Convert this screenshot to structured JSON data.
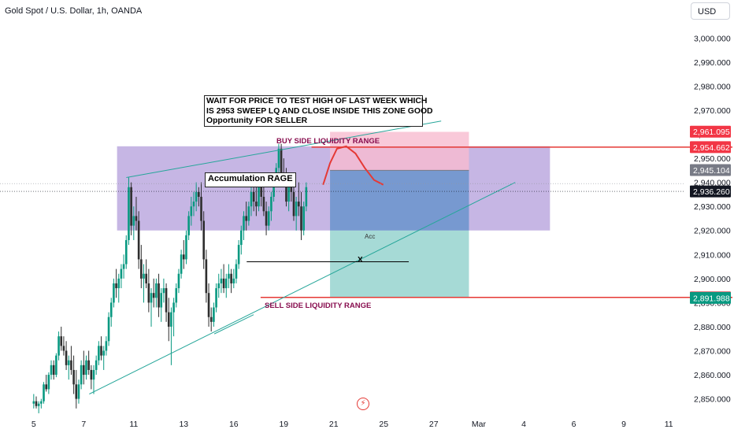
{
  "header": {
    "title": "Gold Spot / U.S. Dollar, 1h, OANDA",
    "currency": "USD"
  },
  "annotations": {
    "note_lines": [
      "WAIT FOR PRICE TO TEST HIGH OF LAST WEEK WHICH",
      "IS 2953 SWEEP LQ AND CLOSE INSIDE THIS ZONE GOOD",
      "Opportunity FOR SELLER"
    ],
    "accumulation": "Accumulation RAGE",
    "buy_side": "BUY SIDE LIQUIDITY RANGE",
    "sell_side": "SELL SIDE LIQUIDITY RANGE",
    "acc": "Acc",
    "x_mark": "X",
    "flash_icon": "lightning-icon"
  },
  "colors": {
    "bull": "#089981",
    "bear": "#2e2e2e",
    "accumulation_zone": "#b39ddb",
    "stop_zone": "#f8bbd0",
    "target_zone": "#80cbc4",
    "level_line": "#e53935",
    "trendline": "#26a69a"
  },
  "chart_data": {
    "type": "candlestick",
    "ylim": [
      2843,
      3006
    ],
    "y_ticks": [
      "3,000.000",
      "2,990.000",
      "2,980.000",
      "2,970.000",
      "2,960.000",
      "2,950.000",
      "2,940.000",
      "2,930.000",
      "2,920.000",
      "2,910.000",
      "2,900.000",
      "2,890.000",
      "2,880.000",
      "2,870.000",
      "2,860.000",
      "2,850.000"
    ],
    "y_tick_values": [
      3000,
      2990,
      2980,
      2970,
      2960,
      2950,
      2940,
      2930,
      2920,
      2910,
      2900,
      2890,
      2880,
      2870,
      2860,
      2850
    ],
    "x_ticks": [
      "5",
      "7",
      "11",
      "13",
      "16",
      "19",
      "21",
      "25",
      "27",
      "Mar",
      "4",
      "6",
      "9",
      "11"
    ],
    "x_tick_index": [
      0,
      20,
      40,
      60,
      80,
      100,
      120,
      140,
      160,
      178,
      196,
      216,
      236,
      254
    ],
    "index_range": [
      -3,
      278
    ],
    "price_labels": [
      {
        "text": "2,961.095",
        "value": 2961.095,
        "bg": "#f23645",
        "fg": "#ffffff"
      },
      {
        "text": "2,954.662",
        "value": 2954.662,
        "bg": "#f23645",
        "fg": "#ffffff"
      },
      {
        "text": "2,945.104",
        "value": 2945.104,
        "bg": "#787b86",
        "fg": "#ffffff"
      },
      {
        "text": "2,936.260",
        "value": 2936.26,
        "bg": "#131722",
        "fg": "#ffffff"
      },
      {
        "text": "2,892.162",
        "value": 2892.162,
        "bg": "#f23645",
        "fg": "#ffffff"
      },
      {
        "text": "2,891.988",
        "value": 2891.988,
        "bg": "#089981",
        "fg": "#ffffff"
      }
    ],
    "accumulation_zone": {
      "x": [
        36,
        223
      ],
      "y": [
        2920,
        2955
      ]
    },
    "stop_zone": {
      "x": [
        128,
        188
      ],
      "y": [
        2945,
        2961
      ]
    },
    "blue_zone": {
      "x": [
        128,
        188
      ],
      "y": [
        2920,
        2945
      ]
    },
    "target_zone": {
      "x": [
        128,
        188
      ],
      "y": [
        2892,
        2920
      ]
    },
    "levels": [
      2954.662,
      2892.162
    ],
    "trendlines": [
      {
        "x": [
          40,
          176
        ],
        "y": [
          2942,
          2965.5
        ]
      },
      {
        "x": [
          24,
          208
        ],
        "y": [
          2852,
          2940
        ]
      },
      {
        "x": [
          78,
          95
        ],
        "y": [
          2877,
          2885
        ]
      }
    ],
    "x_line": {
      "x": [
        92,
        162
      ],
      "y": 2907
    },
    "projection": [
      [
        125,
        2939
      ],
      [
        128,
        2948
      ],
      [
        131,
        2954
      ],
      [
        135,
        2955
      ],
      [
        139,
        2952
      ],
      [
        143,
        2946
      ],
      [
        147,
        2941
      ],
      [
        151,
        2939
      ]
    ],
    "candles": [
      [
        2848,
        2852,
        2846,
        2849
      ],
      [
        2849,
        2851,
        2846,
        2847
      ],
      [
        2847,
        2849,
        2844,
        2848
      ],
      [
        2848,
        2850,
        2846,
        2849
      ],
      [
        2849,
        2857,
        2848,
        2856
      ],
      [
        2856,
        2860,
        2853,
        2854
      ],
      [
        2854,
        2861,
        2852,
        2860
      ],
      [
        2860,
        2866,
        2858,
        2864
      ],
      [
        2864,
        2866,
        2858,
        2860
      ],
      [
        2860,
        2869,
        2859,
        2868
      ],
      [
        2868,
        2878,
        2866,
        2876
      ],
      [
        2876,
        2880,
        2870,
        2872
      ],
      [
        2872,
        2876,
        2868,
        2870
      ],
      [
        2870,
        2874,
        2862,
        2864
      ],
      [
        2864,
        2868,
        2858,
        2866
      ],
      [
        2866,
        2872,
        2860,
        2862
      ],
      [
        2862,
        2868,
        2852,
        2856
      ],
      [
        2856,
        2862,
        2846,
        2850
      ],
      [
        2850,
        2858,
        2848,
        2856
      ],
      [
        2856,
        2866,
        2854,
        2864
      ],
      [
        2864,
        2870,
        2856,
        2860
      ],
      [
        2860,
        2868,
        2858,
        2866
      ],
      [
        2866,
        2870,
        2860,
        2862
      ],
      [
        2862,
        2864,
        2854,
        2858
      ],
      [
        2858,
        2864,
        2852,
        2862
      ],
      [
        2862,
        2868,
        2860,
        2866
      ],
      [
        2866,
        2874,
        2864,
        2872
      ],
      [
        2872,
        2876,
        2866,
        2868
      ],
      [
        2868,
        2872,
        2862,
        2870
      ],
      [
        2870,
        2876,
        2868,
        2874
      ],
      [
        2874,
        2886,
        2872,
        2884
      ],
      [
        2884,
        2892,
        2880,
        2890
      ],
      [
        2890,
        2900,
        2888,
        2898
      ],
      [
        2898,
        2904,
        2892,
        2896
      ],
      [
        2896,
        2902,
        2890,
        2900
      ],
      [
        2900,
        2906,
        2896,
        2904
      ],
      [
        2904,
        2910,
        2900,
        2906
      ],
      [
        2906,
        2918,
        2904,
        2916
      ],
      [
        2916,
        2942,
        2914,
        2938
      ],
      [
        2938,
        2940,
        2918,
        2922
      ],
      [
        2922,
        2930,
        2916,
        2926
      ],
      [
        2926,
        2934,
        2920,
        2924
      ],
      [
        2924,
        2928,
        2904,
        2908
      ],
      [
        2908,
        2914,
        2896,
        2900
      ],
      [
        2900,
        2906,
        2890,
        2902
      ],
      [
        2902,
        2908,
        2896,
        2898
      ],
      [
        2898,
        2904,
        2886,
        2890
      ],
      [
        2890,
        2896,
        2880,
        2894
      ],
      [
        2894,
        2900,
        2888,
        2892
      ],
      [
        2892,
        2900,
        2888,
        2898
      ],
      [
        2898,
        2902,
        2884,
        2888
      ],
      [
        2888,
        2896,
        2882,
        2894
      ],
      [
        2894,
        2900,
        2890,
        2896
      ],
      [
        2896,
        2898,
        2882,
        2886
      ],
      [
        2886,
        2892,
        2874,
        2880
      ],
      [
        2880,
        2888,
        2864,
        2886
      ],
      [
        2886,
        2892,
        2876,
        2890
      ],
      [
        2890,
        2898,
        2888,
        2896
      ],
      [
        2896,
        2904,
        2894,
        2902
      ],
      [
        2902,
        2912,
        2900,
        2910
      ],
      [
        2910,
        2916,
        2904,
        2908
      ],
      [
        2908,
        2920,
        2906,
        2918
      ],
      [
        2918,
        2928,
        2916,
        2926
      ],
      [
        2926,
        2934,
        2922,
        2930
      ],
      [
        2930,
        2936,
        2926,
        2932
      ],
      [
        2932,
        2940,
        2928,
        2936
      ],
      [
        2936,
        2938,
        2930,
        2934
      ],
      [
        2934,
        2940,
        2920,
        2924
      ],
      [
        2924,
        2928,
        2904,
        2908
      ],
      [
        2908,
        2912,
        2890,
        2894
      ],
      [
        2894,
        2898,
        2880,
        2884
      ],
      [
        2884,
        2888,
        2878,
        2882
      ],
      [
        2882,
        2890,
        2880,
        2888
      ],
      [
        2888,
        2898,
        2886,
        2896
      ],
      [
        2896,
        2902,
        2892,
        2898
      ],
      [
        2898,
        2904,
        2894,
        2900
      ],
      [
        2900,
        2906,
        2894,
        2896
      ],
      [
        2896,
        2902,
        2892,
        2900
      ],
      [
        2900,
        2906,
        2896,
        2902
      ],
      [
        2902,
        2904,
        2894,
        2898
      ],
      [
        2898,
        2904,
        2896,
        2900
      ],
      [
        2900,
        2908,
        2898,
        2906
      ],
      [
        2906,
        2916,
        2904,
        2914
      ],
      [
        2914,
        2922,
        2910,
        2920
      ],
      [
        2920,
        2928,
        2916,
        2926
      ],
      [
        2926,
        2932,
        2920,
        2924
      ],
      [
        2924,
        2932,
        2922,
        2930
      ],
      [
        2930,
        2938,
        2926,
        2936
      ],
      [
        2936,
        2940,
        2928,
        2932
      ],
      [
        2932,
        2938,
        2926,
        2930
      ],
      [
        2930,
        2940,
        2928,
        2938
      ],
      [
        2938,
        2944,
        2930,
        2934
      ],
      [
        2934,
        2940,
        2926,
        2928
      ],
      [
        2928,
        2932,
        2918,
        2922
      ],
      [
        2922,
        2930,
        2920,
        2928
      ],
      [
        2928,
        2936,
        2924,
        2934
      ],
      [
        2934,
        2944,
        2932,
        2942
      ],
      [
        2942,
        2948,
        2938,
        2946
      ],
      [
        2946,
        2956,
        2944,
        2954
      ],
      [
        2954,
        2956,
        2942,
        2944
      ],
      [
        2944,
        2950,
        2938,
        2940
      ],
      [
        2940,
        2946,
        2930,
        2932
      ],
      [
        2932,
        2940,
        2928,
        2938
      ],
      [
        2938,
        2944,
        2932,
        2936
      ],
      [
        2936,
        2942,
        2924,
        2926
      ],
      [
        2926,
        2934,
        2920,
        2932
      ],
      [
        2932,
        2940,
        2926,
        2930
      ],
      [
        2930,
        2936,
        2916,
        2920
      ],
      [
        2920,
        2932,
        2918,
        2930
      ],
      [
        2930,
        2940,
        2928,
        2938
      ]
    ]
  }
}
